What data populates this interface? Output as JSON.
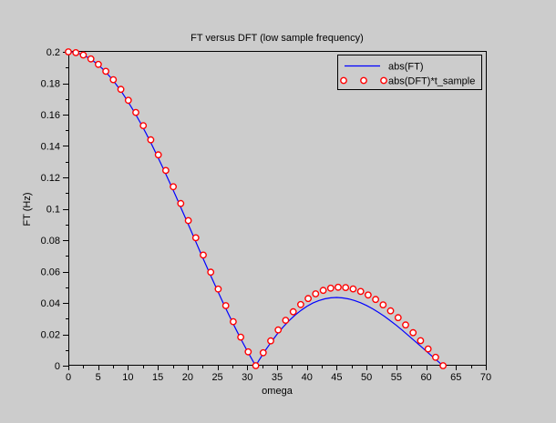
{
  "figure": {
    "background": "#cccccc",
    "axis_color": "#000000",
    "text_color": "#000000"
  },
  "chart_data": {
    "type": "line",
    "title": "FT versus DFT (low sample frequency)",
    "xlabel": "omega",
    "ylabel": "FT (Hz)",
    "xlim": [
      0,
      70
    ],
    "ylim": [
      0,
      0.2
    ],
    "grid": false,
    "xticks": [
      0,
      5,
      10,
      15,
      20,
      25,
      30,
      35,
      40,
      45,
      50,
      55,
      60,
      65,
      70
    ],
    "xtick_labels": [
      "0",
      "5",
      "10",
      "15",
      "20",
      "25",
      "30",
      "35",
      "40",
      "45",
      "50",
      "55",
      "60",
      "65",
      "70"
    ],
    "x_minor_ticks": [
      2.5,
      7.5,
      12.5,
      17.5,
      22.5,
      27.5,
      32.5,
      37.5,
      42.5,
      47.5,
      52.5,
      57.5,
      62.5,
      67.5
    ],
    "yticks": [
      0,
      0.02,
      0.04,
      0.06,
      0.08,
      0.1,
      0.12,
      0.14,
      0.16,
      0.18,
      0.2
    ],
    "ytick_labels": [
      "0",
      "0.02",
      "0.04",
      "0.06",
      "0.08",
      "0.1",
      "0.12",
      "0.14",
      "0.16",
      "0.18",
      "0.2"
    ],
    "y_minor_ticks": [
      0.01,
      0.03,
      0.05,
      0.07,
      0.09,
      0.11,
      0.13,
      0.15,
      0.17,
      0.19
    ],
    "legend": {
      "position": "top-right",
      "entries": [
        {
          "label": "abs(FT)",
          "type": "line",
          "color": "#0000ff"
        },
        {
          "label": "abs(DFT)*t_sample",
          "type": "marker",
          "color": "#ff0000",
          "marker_fill": "#ffffff"
        }
      ]
    },
    "series": [
      {
        "name": "abs(FT)",
        "type": "line",
        "color": "#0000ff",
        "x": [
          0,
          1,
          2,
          3,
          4,
          5,
          6,
          7,
          8,
          9,
          10,
          11,
          12,
          13,
          14,
          15,
          16,
          17,
          18,
          19,
          20,
          21,
          22,
          23,
          24,
          25,
          26,
          27,
          28,
          29,
          30,
          31,
          31.416,
          32,
          33,
          34,
          35,
          36,
          37,
          38,
          39,
          40,
          41,
          42,
          43,
          44,
          45,
          46,
          47,
          48,
          49,
          50,
          51,
          52,
          53,
          54,
          55,
          56,
          57,
          58,
          59,
          60,
          61,
          62,
          62.832
        ],
        "y": [
          0.2,
          0.19967,
          0.19867,
          0.19701,
          0.19471,
          0.19177,
          0.18821,
          0.18406,
          0.17934,
          0.17407,
          0.16829,
          0.16204,
          0.15534,
          0.14824,
          0.14078,
          0.133,
          0.12495,
          0.11667,
          0.10821,
          0.09961,
          0.09093,
          0.08221,
          0.0735,
          0.06484,
          0.05629,
          0.04788,
          0.03965,
          0.03166,
          0.02393,
          0.0165,
          0.00941,
          0.00268,
          0,
          0.00365,
          0.00956,
          0.01503,
          0.02004,
          0.02458,
          0.02864,
          0.0322,
          0.03527,
          0.03784,
          0.03992,
          0.0415,
          0.04261,
          0.04325,
          0.04345,
          0.0432,
          0.04255,
          0.04151,
          0.0401,
          0.03836,
          0.03631,
          0.03398,
          0.03141,
          0.02862,
          0.02566,
          0.02255,
          0.01932,
          0.01602,
          0.01267,
          0.00931,
          0.00597,
          0.00268,
          0
        ]
      },
      {
        "name": "abs(DFT)*t_sample",
        "type": "scatter",
        "marker": "circle",
        "color": "#ff0000",
        "marker_fill": "#ffffff",
        "x": [
          0,
          1.257,
          2.513,
          3.77,
          5.027,
          6.283,
          7.54,
          8.796,
          10.053,
          11.31,
          12.566,
          13.823,
          15.08,
          16.336,
          17.593,
          18.85,
          20.106,
          21.363,
          22.619,
          23.876,
          25.133,
          26.389,
          27.646,
          28.903,
          30.159,
          31.416,
          32.673,
          33.929,
          35.186,
          36.442,
          37.699,
          38.956,
          40.212,
          41.469,
          42.726,
          43.982,
          45.239,
          46.496,
          47.752,
          49.009,
          50.265,
          51.522,
          52.779,
          54.035,
          55.292,
          56.549,
          57.805,
          59.062,
          60.319,
          61.575,
          62.832
        ],
        "y": [
          0.2,
          0.19949,
          0.19798,
          0.19548,
          0.19201,
          0.18759,
          0.18227,
          0.17609,
          0.16911,
          0.16138,
          0.15297,
          0.14395,
          0.1344,
          0.12439,
          0.11401,
          0.10334,
          0.09248,
          0.0815,
          0.07051,
          0.05958,
          0.0488,
          0.03826,
          0.02804,
          0.01821,
          0.00884,
          0,
          0.00825,
          0.01585,
          0.02276,
          0.02894,
          0.03435,
          0.03897,
          0.04279,
          0.04579,
          0.04798,
          0.04937,
          0.04997,
          0.0498,
          0.0489,
          0.04731,
          0.04506,
          0.04221,
          0.03881,
          0.03493,
          0.03063,
          0.02598,
          0.02105,
          0.01592,
          0.01065,
          0.00532,
          0
        ]
      }
    ]
  }
}
